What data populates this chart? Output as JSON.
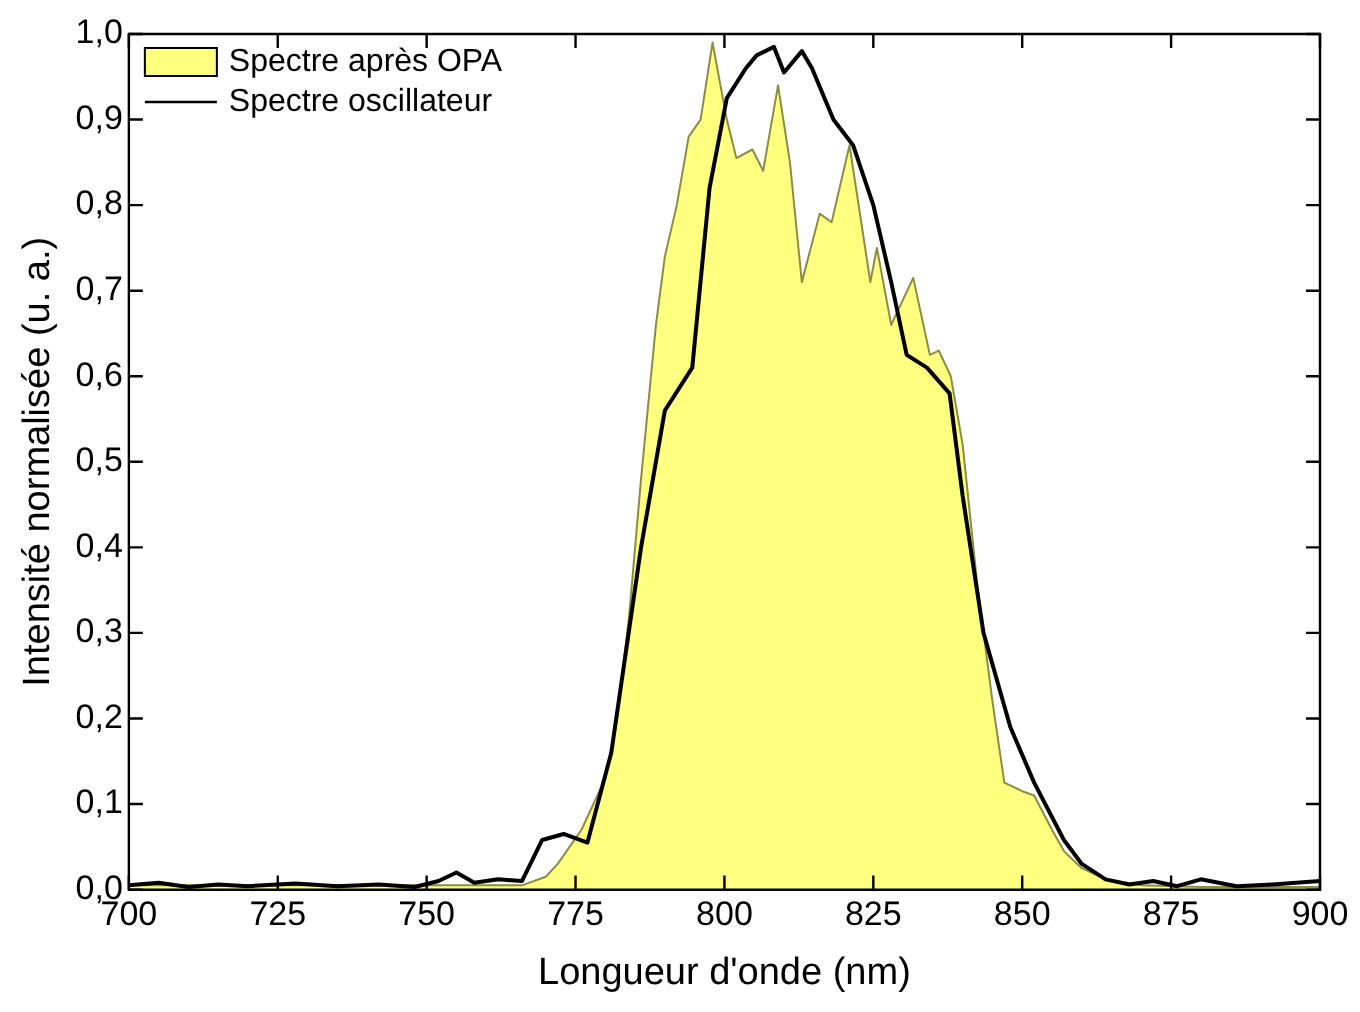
{
  "chart_data": {
    "type": "line",
    "xlabel": "Longueur d'onde (nm)",
    "ylabel": "Intensité normalisée (u. a.)",
    "xlim": [
      700,
      900
    ],
    "xticks": [
      700,
      725,
      750,
      775,
      800,
      825,
      850,
      875,
      900
    ],
    "ylim": [
      0,
      1
    ],
    "yticks": [
      {
        "value": 0,
        "label": "0,0"
      },
      {
        "value": 0.1,
        "label": "0,1"
      },
      {
        "value": 0.2,
        "label": "0,2"
      },
      {
        "value": 0.3,
        "label": "0,3"
      },
      {
        "value": 0.4,
        "label": "0,4"
      },
      {
        "value": 0.5,
        "label": "0,5"
      },
      {
        "value": 0.6,
        "label": "0,6"
      },
      {
        "value": 0.7,
        "label": "0,7"
      },
      {
        "value": 0.8,
        "label": "0,8"
      },
      {
        "value": 0.9,
        "label": "0,9"
      },
      {
        "value": 1,
        "label": "1,0"
      }
    ],
    "grid": false,
    "legend": "top left",
    "marker": "none",
    "line_style": "solid",
    "series": [
      {
        "name": "Spectre après OPA",
        "type": "area",
        "color": "#ffff80",
        "x": [
          700,
          720,
          740,
          760,
          766,
          770,
          772,
          776,
          780,
          782,
          784,
          786,
          788.5,
          790,
          792,
          794,
          796,
          798,
          800.4,
          802,
          804.7,
          806.5,
          809,
          811,
          813,
          816,
          818,
          821,
          824.5,
          825.6,
          828,
          831.7,
          834.5,
          836,
          838,
          840,
          842.4,
          845,
          847,
          850,
          852,
          855,
          857,
          860,
          864,
          870,
          880,
          900
        ],
        "values": [
          0.005,
          0.005,
          0.005,
          0.005,
          0.005,
          0.015,
          0.03,
          0.07,
          0.13,
          0.2,
          0.32,
          0.48,
          0.66,
          0.74,
          0.8,
          0.88,
          0.9,
          0.99,
          0.9,
          0.855,
          0.865,
          0.84,
          0.94,
          0.85,
          0.71,
          0.79,
          0.78,
          0.87,
          0.71,
          0.75,
          0.66,
          0.715,
          0.625,
          0.63,
          0.6,
          0.52,
          0.36,
          0.22,
          0.125,
          0.115,
          0.11,
          0.07,
          0.045,
          0.025,
          0.012,
          0.005,
          0.003,
          0.003
        ]
      },
      {
        "name": "Spectre oscillateur",
        "color": "#000000",
        "x": [
          700,
          705,
          710,
          715,
          720,
          728,
          735,
          742,
          748,
          752,
          755,
          758,
          762,
          766,
          769.4,
          773,
          777,
          781,
          786,
          790,
          794.6,
          797.5,
          800.4,
          803.6,
          805.4,
          808.3,
          810,
          813,
          814.7,
          818.3,
          821.6,
          825,
          828,
          830.6,
          834,
          837.8,
          840,
          843.5,
          848,
          852,
          857,
          860,
          864,
          868,
          872,
          876,
          880,
          886,
          892,
          900
        ],
        "values": [
          0.005,
          0.008,
          0.003,
          0.006,
          0.004,
          0.007,
          0.004,
          0.006,
          0.003,
          0.01,
          0.02,
          0.008,
          0.012,
          0.01,
          0.058,
          0.065,
          0.055,
          0.16,
          0.4,
          0.56,
          0.61,
          0.82,
          0.925,
          0.96,
          0.975,
          0.985,
          0.955,
          0.98,
          0.96,
          0.9,
          0.87,
          0.8,
          0.71,
          0.625,
          0.61,
          0.58,
          0.46,
          0.3,
          0.19,
          0.125,
          0.058,
          0.03,
          0.012,
          0.006,
          0.01,
          0.004,
          0.012,
          0.004,
          0.006,
          0.01
        ]
      }
    ]
  }
}
